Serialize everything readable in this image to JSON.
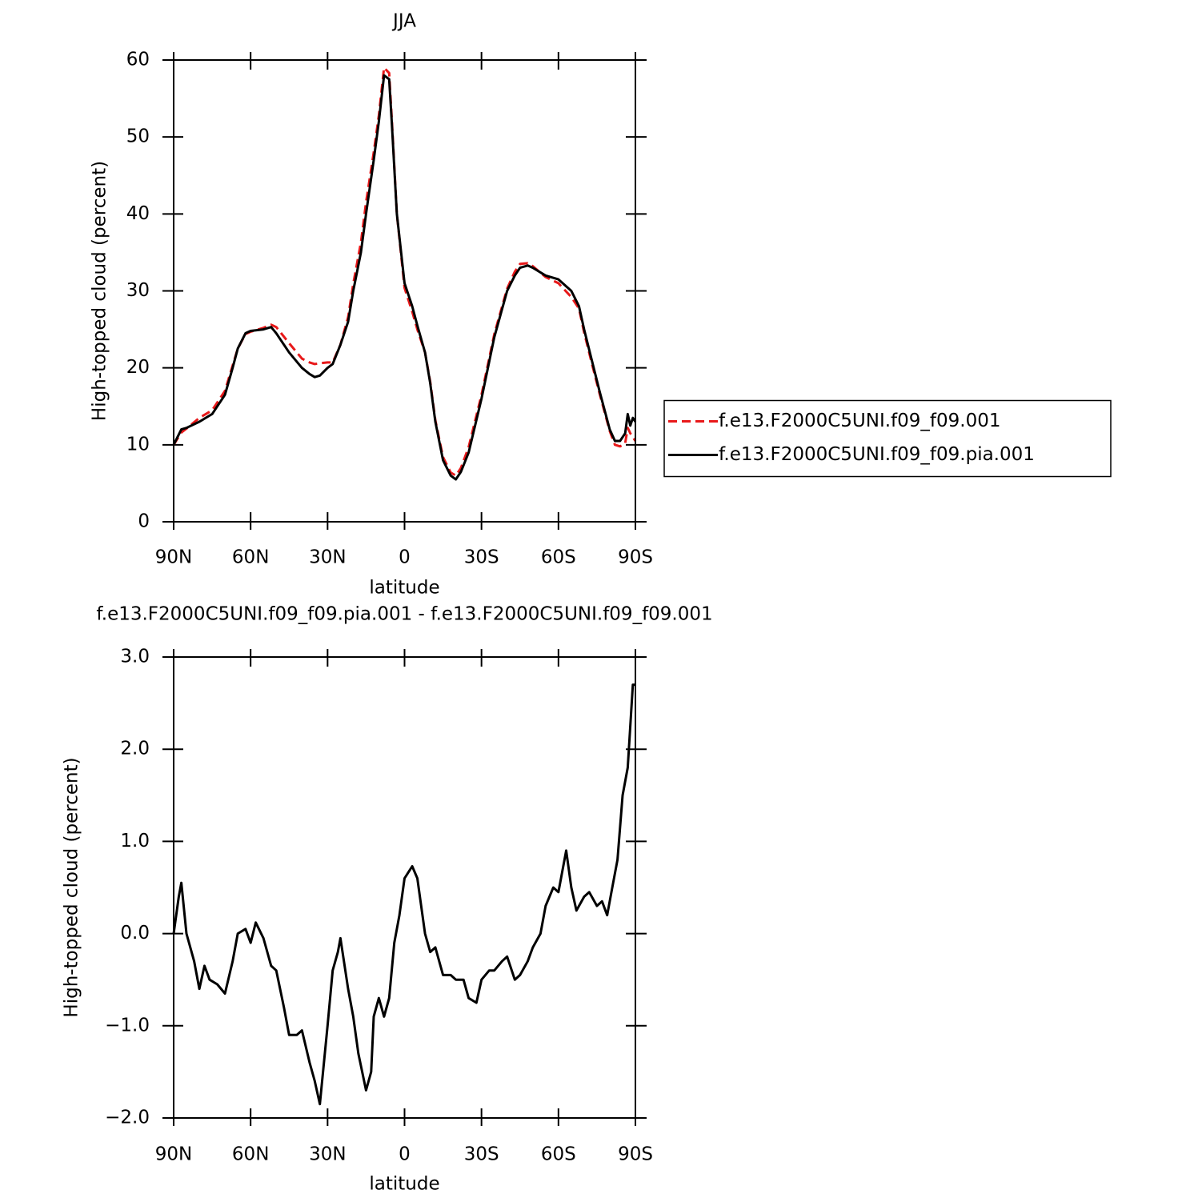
{
  "chart_data": [
    {
      "type": "line",
      "title": "JJA",
      "xlabel": "latitude",
      "ylabel": "High-topped cloud (percent)",
      "x": [
        90,
        87,
        85,
        80,
        75,
        70,
        67,
        65,
        62,
        60,
        55,
        52,
        50,
        45,
        40,
        37,
        35,
        33,
        30,
        28,
        25,
        22,
        20,
        17,
        15,
        12,
        10,
        8,
        6,
        5,
        3,
        0,
        -3,
        -5,
        -8,
        -10,
        -12,
        -15,
        -18,
        -20,
        -22,
        -25,
        -30,
        -35,
        -40,
        -43,
        -45,
        -48,
        -50,
        -55,
        -60,
        -65,
        -68,
        -70,
        -73,
        -76,
        -80,
        -82,
        -84,
        -86,
        -87,
        -88,
        -89,
        -90
      ],
      "series": [
        {
          "name": "f.e13.F2000C5UNI.f09_f09.001",
          "color": "#e8191a",
          "dashed": true,
          "values": [
            10,
            11.6,
            12.1,
            13.5,
            14.5,
            17,
            20.3,
            22.5,
            24.4,
            24.7,
            25.2,
            25.6,
            25.3,
            23.2,
            21.2,
            20.7,
            20.5,
            20.6,
            20.7,
            20.7,
            23,
            26.6,
            30.9,
            36.3,
            41.5,
            48,
            52.8,
            59,
            58.3,
            52.5,
            40,
            30.4,
            27.3,
            25,
            22,
            18.2,
            13.2,
            8.4,
            6.4,
            6,
            7,
            9.7,
            16.5,
            24.4,
            30.3,
            32.5,
            33.5,
            33.6,
            33.2,
            31.8,
            31,
            29.2,
            27.7,
            24.6,
            20.6,
            16.7,
            11.8,
            10,
            9.8,
            10.2,
            12.2,
            11.5,
            11,
            10.5
          ]
        },
        {
          "name": "f.e13.F2000C5UNI.f09_f09.pia.001",
          "color": "#000000",
          "dashed": false,
          "values": [
            10,
            12,
            12.2,
            13,
            14,
            16.5,
            20,
            22.5,
            24.5,
            24.8,
            25,
            25.3,
            24.5,
            22,
            20,
            19.2,
            18.8,
            19,
            20,
            20.5,
            23,
            26,
            30,
            35,
            40,
            47,
            52,
            58,
            57.5,
            52,
            40,
            31,
            28,
            25.5,
            22,
            18,
            13,
            8,
            6,
            5.5,
            6.5,
            9,
            16,
            24,
            30,
            32,
            33,
            33.3,
            33,
            32,
            31.5,
            30,
            28,
            25,
            21,
            17,
            12,
            10.5,
            10.5,
            11.5,
            14,
            12.5,
            13.5,
            13
          ]
        }
      ],
      "xlim": [
        90,
        -90
      ],
      "xticks": [
        {
          "value": 90,
          "label": "90N"
        },
        {
          "value": 60,
          "label": "60N"
        },
        {
          "value": 30,
          "label": "30N"
        },
        0,
        {
          "value": -30,
          "label": "30S"
        },
        {
          "value": -60,
          "label": "60S"
        },
        {
          "value": -90,
          "label": "90S"
        }
      ],
      "ylim": [
        0,
        60
      ],
      "yticks": [
        0,
        10,
        20,
        30,
        40,
        50,
        60
      ],
      "legend": "right"
    },
    {
      "type": "line",
      "title": "f.e13.F2000C5UNI.f09_f09.pia.001 - f.e13.F2000C5UNI.f09_f09.001",
      "xlabel": "latitude",
      "ylabel": "High-topped cloud (percent)",
      "x": [
        90,
        88,
        87,
        85,
        82,
        80,
        78,
        76,
        73,
        70,
        67,
        65,
        62,
        60,
        58,
        55,
        52,
        50,
        47,
        45,
        42,
        40,
        37,
        35,
        33,
        30,
        28,
        26,
        25,
        22,
        20,
        18,
        15,
        13,
        12,
        10,
        8,
        6,
        4,
        2,
        0,
        -3,
        -5,
        -8,
        -10,
        -12,
        -15,
        -18,
        -20,
        -23,
        -25,
        -28,
        -30,
        -33,
        -35,
        -38,
        -40,
        -43,
        -45,
        -48,
        -50,
        -53,
        -55,
        -58,
        -60,
        -63,
        -65,
        -67,
        -70,
        -72,
        -75,
        -77,
        -79,
        -81,
        -83,
        -85,
        -87,
        -89,
        -90
      ],
      "series": [
        {
          "color": "#000000",
          "dashed": false,
          "values": [
            0,
            0.4,
            0.55,
            0,
            -0.3,
            -0.6,
            -0.35,
            -0.5,
            -0.55,
            -0.65,
            -0.3,
            0,
            0.05,
            -0.1,
            0.12,
            -0.05,
            -0.35,
            -0.4,
            -0.8,
            -1.1,
            -1.1,
            -1.05,
            -1.4,
            -1.6,
            -1.85,
            -1.0,
            -0.4,
            -0.2,
            -0.05,
            -0.6,
            -0.9,
            -1.3,
            -1.7,
            -1.5,
            -0.9,
            -0.7,
            -0.9,
            -0.7,
            -0.1,
            0.2,
            0.6,
            0.73,
            0.6,
            0,
            -0.2,
            -0.15,
            -0.45,
            -0.45,
            -0.5,
            -0.5,
            -0.7,
            -0.75,
            -0.5,
            -0.4,
            -0.4,
            -0.3,
            -0.25,
            -0.5,
            -0.45,
            -0.3,
            -0.15,
            0,
            0.3,
            0.5,
            0.45,
            0.9,
            0.5,
            0.25,
            0.4,
            0.45,
            0.3,
            0.35,
            0.2,
            0.5,
            0.8,
            1.5,
            1.8,
            2.7,
            2.7
          ]
        }
      ],
      "xlim": [
        90,
        -90
      ],
      "xticks": [
        {
          "value": 90,
          "label": "90N"
        },
        {
          "value": 60,
          "label": "60N"
        },
        {
          "value": 30,
          "label": "30N"
        },
        0,
        {
          "value": -30,
          "label": "30S"
        },
        {
          "value": -60,
          "label": "60S"
        },
        {
          "value": -90,
          "label": "90S"
        }
      ],
      "ylim": [
        -2,
        3
      ],
      "yticks": [
        {
          "value": -2,
          "label": "−2.0"
        },
        {
          "value": -1,
          "label": "−1.0"
        },
        {
          "value": 0,
          "label": "0.0"
        },
        {
          "value": 1,
          "label": "1.0"
        },
        {
          "value": 2,
          "label": "2.0"
        },
        {
          "value": 3,
          "label": "3.0"
        }
      ]
    }
  ]
}
